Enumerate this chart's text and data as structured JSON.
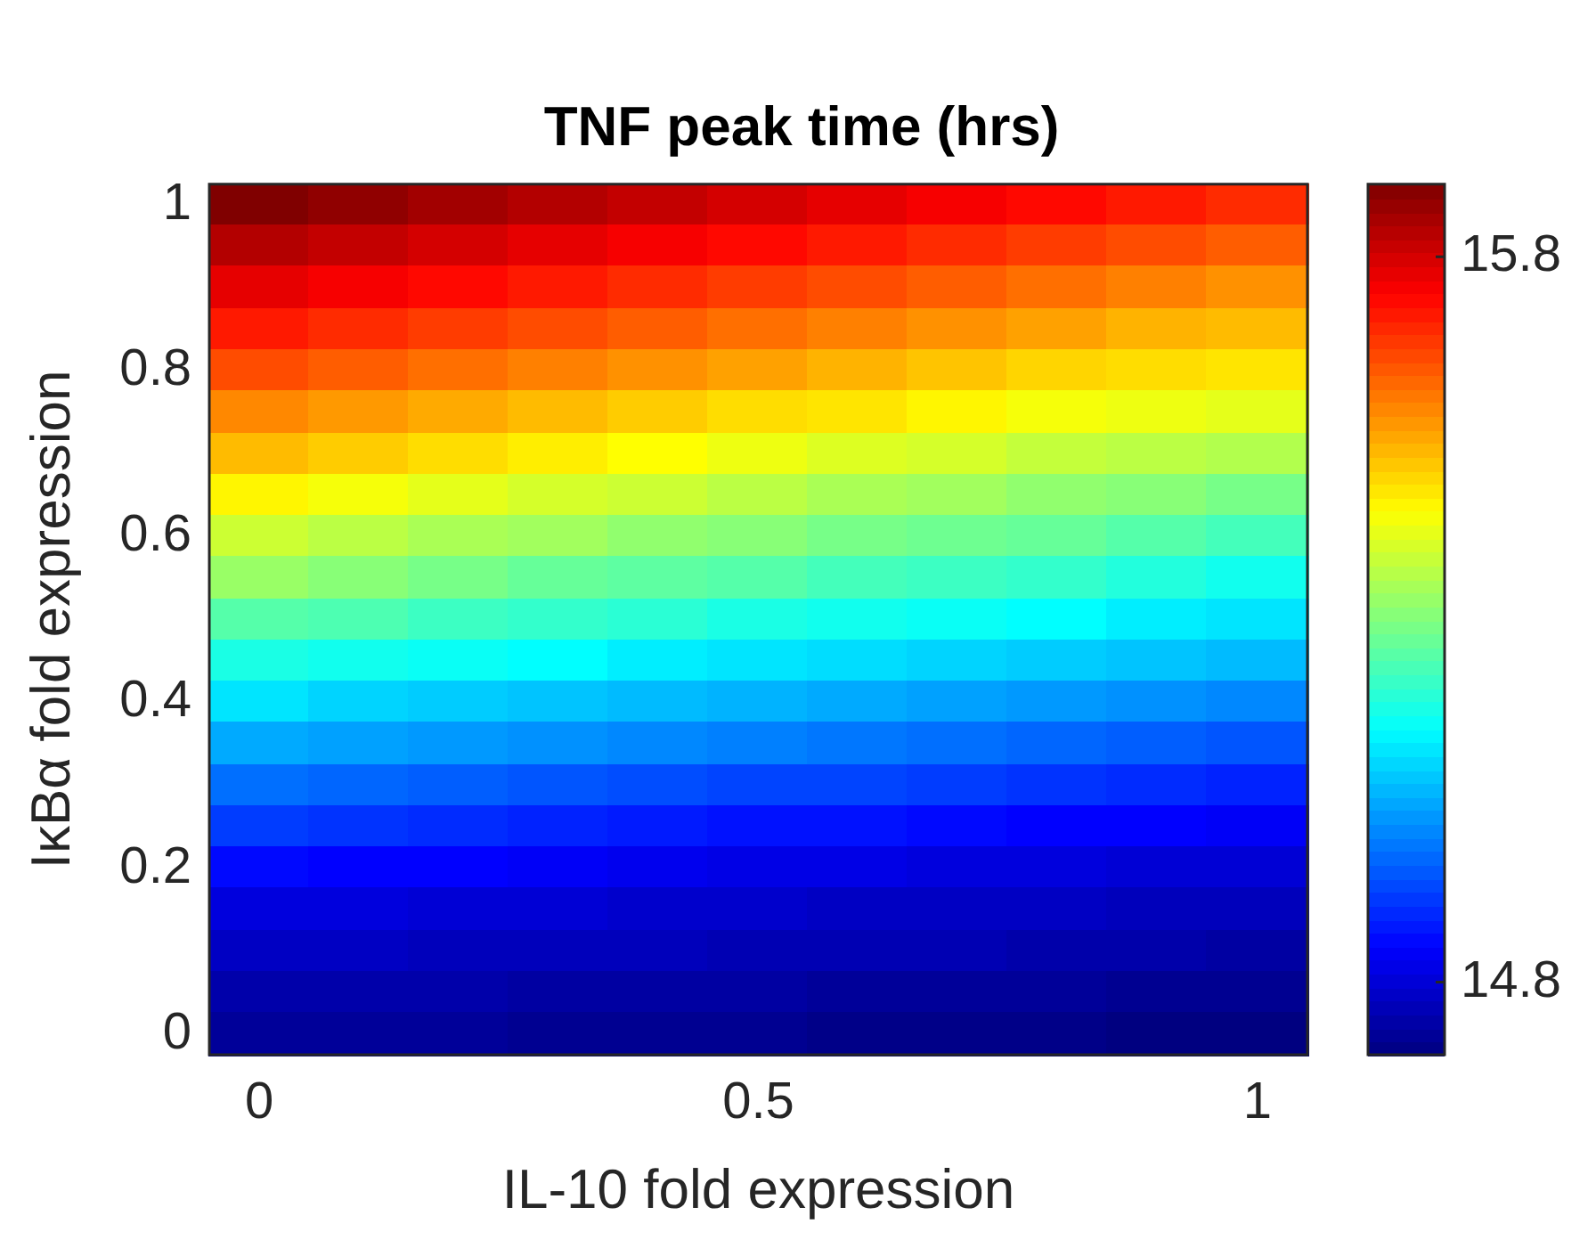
{
  "chart_data": {
    "type": "heatmap",
    "title": "TNF peak time (hrs)",
    "xlabel": "IL-10 fold expression",
    "ylabel": "IκBα fold expression",
    "categories": [
      "0",
      null,
      null,
      null,
      null,
      "0.5",
      null,
      null,
      null,
      null,
      "1"
    ],
    "y_categories": [
      "1",
      null,
      null,
      null,
      "0.8",
      null,
      null,
      null,
      "0.6",
      null,
      null,
      null,
      "0.4",
      null,
      null,
      null,
      "0.2",
      null,
      null,
      null,
      "0"
    ],
    "clim": [
      14.7,
      15.9
    ],
    "cticks": [
      14.8,
      15.8
    ],
    "cells": [
      [
        15.9,
        15.88,
        15.86,
        15.84,
        15.82,
        15.8,
        15.78,
        15.76,
        15.74,
        15.72,
        15.7
      ],
      [
        15.84,
        15.82,
        15.8,
        15.78,
        15.76,
        15.74,
        15.72,
        15.7,
        15.68,
        15.66,
        15.64
      ],
      [
        15.78,
        15.76,
        15.74,
        15.72,
        15.7,
        15.68,
        15.66,
        15.64,
        15.62,
        15.6,
        15.58
      ],
      [
        15.72,
        15.7,
        15.68,
        15.66,
        15.64,
        15.62,
        15.6,
        15.58,
        15.56,
        15.54,
        15.53
      ],
      [
        15.66,
        15.64,
        15.62,
        15.6,
        15.58,
        15.56,
        15.54,
        15.52,
        15.5,
        15.49,
        15.48
      ],
      [
        15.59,
        15.57,
        15.55,
        15.53,
        15.51,
        15.49,
        15.48,
        15.46,
        15.44,
        15.43,
        15.42
      ],
      [
        15.53,
        15.51,
        15.49,
        15.47,
        15.45,
        15.43,
        15.41,
        15.4,
        15.38,
        15.37,
        15.36
      ],
      [
        15.46,
        15.44,
        15.42,
        15.4,
        15.39,
        15.37,
        15.35,
        15.34,
        15.32,
        15.31,
        15.29
      ],
      [
        15.39,
        15.37,
        15.35,
        15.34,
        15.32,
        15.31,
        15.29,
        15.28,
        15.27,
        15.25,
        15.23
      ],
      [
        15.33,
        15.31,
        15.29,
        15.27,
        15.26,
        15.25,
        15.23,
        15.22,
        15.21,
        15.19,
        15.17
      ],
      [
        15.25,
        15.24,
        15.22,
        15.21,
        15.2,
        15.18,
        15.17,
        15.16,
        15.15,
        15.13,
        15.12
      ],
      [
        15.18,
        15.17,
        15.16,
        15.15,
        15.13,
        15.12,
        15.11,
        15.1,
        15.09,
        15.08,
        15.07
      ],
      [
        15.12,
        15.1,
        15.09,
        15.08,
        15.07,
        15.06,
        15.05,
        15.04,
        15.03,
        15.02,
        15.01
      ],
      [
        15.05,
        15.04,
        15.03,
        15.02,
        15.01,
        15.0,
        14.99,
        14.98,
        14.97,
        14.96,
        14.95
      ],
      [
        14.98,
        14.97,
        14.96,
        14.95,
        14.94,
        14.93,
        14.93,
        14.92,
        14.91,
        14.9,
        14.89
      ],
      [
        14.92,
        14.91,
        14.9,
        14.89,
        14.88,
        14.87,
        14.87,
        14.86,
        14.85,
        14.85,
        14.84
      ],
      [
        14.86,
        14.85,
        14.85,
        14.84,
        14.83,
        14.82,
        14.82,
        14.81,
        14.81,
        14.8,
        14.8
      ],
      [
        14.81,
        14.81,
        14.8,
        14.8,
        14.79,
        14.79,
        14.78,
        14.78,
        14.78,
        14.77,
        14.77
      ],
      [
        14.78,
        14.78,
        14.77,
        14.77,
        14.77,
        14.76,
        14.76,
        14.76,
        14.75,
        14.75,
        14.74
      ],
      [
        14.75,
        14.75,
        14.75,
        14.74,
        14.74,
        14.74,
        14.73,
        14.73,
        14.73,
        14.72,
        14.72
      ],
      [
        14.73,
        14.73,
        14.73,
        14.72,
        14.72,
        14.72,
        14.71,
        14.71,
        14.71,
        14.7,
        14.7
      ]
    ]
  }
}
